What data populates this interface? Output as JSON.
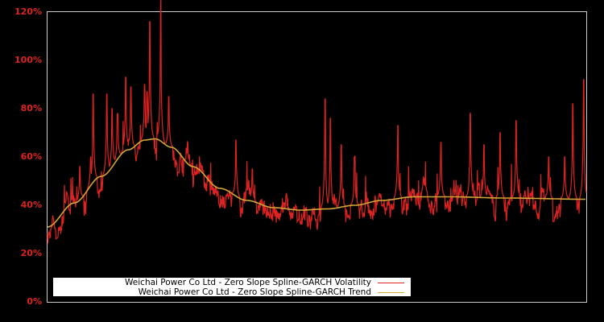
{
  "chart_data": {
    "type": "line",
    "title": "",
    "xlabel": "",
    "ylabel": "",
    "ylim": [
      0,
      120
    ],
    "yticks": [
      "0%",
      "20%",
      "40%",
      "60%",
      "80%",
      "100%",
      "120%"
    ],
    "grid": false,
    "legend_position": "lower left",
    "series": [
      {
        "name": "Weichai Power Co Ltd - Zero Slope Spline-GARCH Volatility",
        "color": "#dd2222",
        "description": "Daily conditional volatility; baseline follows trend with spikes",
        "peaks": [
          {
            "x_frac": 0.06,
            "y": 56
          },
          {
            "x_frac": 0.08,
            "y": 60
          },
          {
            "x_frac": 0.085,
            "y": 86
          },
          {
            "x_frac": 0.11,
            "y": 86
          },
          {
            "x_frac": 0.12,
            "y": 80
          },
          {
            "x_frac": 0.13,
            "y": 78
          },
          {
            "x_frac": 0.145,
            "y": 93
          },
          {
            "x_frac": 0.155,
            "y": 89
          },
          {
            "x_frac": 0.185,
            "y": 87
          },
          {
            "x_frac": 0.18,
            "y": 90
          },
          {
            "x_frac": 0.19,
            "y": 116
          },
          {
            "x_frac": 0.21,
            "y": 117
          },
          {
            "x_frac": 0.225,
            "y": 85
          },
          {
            "x_frac": 0.26,
            "y": 66
          },
          {
            "x_frac": 0.35,
            "y": 67
          },
          {
            "x_frac": 0.38,
            "y": 55
          },
          {
            "x_frac": 0.515,
            "y": 84
          },
          {
            "x_frac": 0.525,
            "y": 76
          },
          {
            "x_frac": 0.545,
            "y": 65
          },
          {
            "x_frac": 0.57,
            "y": 60
          },
          {
            "x_frac": 0.65,
            "y": 73
          },
          {
            "x_frac": 0.73,
            "y": 66
          },
          {
            "x_frac": 0.785,
            "y": 78
          },
          {
            "x_frac": 0.84,
            "y": 70
          },
          {
            "x_frac": 0.81,
            "y": 65
          },
          {
            "x_frac": 0.87,
            "y": 75
          },
          {
            "x_frac": 0.93,
            "y": 60
          },
          {
            "x_frac": 0.96,
            "y": 60
          },
          {
            "x_frac": 0.975,
            "y": 82
          },
          {
            "x_frac": 0.995,
            "y": 92
          }
        ]
      },
      {
        "name": "Weichai Power Co Ltd - Zero Slope Spline-GARCH Trend",
        "color": "#d4a637",
        "points": [
          {
            "x_frac": 0.0,
            "y": 31
          },
          {
            "x_frac": 0.05,
            "y": 41
          },
          {
            "x_frac": 0.1,
            "y": 52
          },
          {
            "x_frac": 0.15,
            "y": 63
          },
          {
            "x_frac": 0.18,
            "y": 67
          },
          {
            "x_frac": 0.2,
            "y": 67.5
          },
          {
            "x_frac": 0.23,
            "y": 64
          },
          {
            "x_frac": 0.27,
            "y": 56
          },
          {
            "x_frac": 0.32,
            "y": 47
          },
          {
            "x_frac": 0.37,
            "y": 42
          },
          {
            "x_frac": 0.42,
            "y": 39
          },
          {
            "x_frac": 0.47,
            "y": 38
          },
          {
            "x_frac": 0.52,
            "y": 38.5
          },
          {
            "x_frac": 0.57,
            "y": 40
          },
          {
            "x_frac": 0.62,
            "y": 42
          },
          {
            "x_frac": 0.68,
            "y": 43.5
          },
          {
            "x_frac": 0.75,
            "y": 43.5
          },
          {
            "x_frac": 0.85,
            "y": 43
          },
          {
            "x_frac": 1.0,
            "y": 42.5
          }
        ]
      }
    ]
  },
  "legend": {
    "items": [
      {
        "label": "Weichai Power Co Ltd - Zero Slope Spline-GARCH Volatility",
        "color": "#dd2222"
      },
      {
        "label": "Weichai Power Co Ltd - Zero Slope Spline-GARCH Trend",
        "color": "#d4a637"
      }
    ]
  },
  "colors": {
    "background": "#000000",
    "axis": "#cccccc",
    "tick_text": "#dd2222"
  }
}
